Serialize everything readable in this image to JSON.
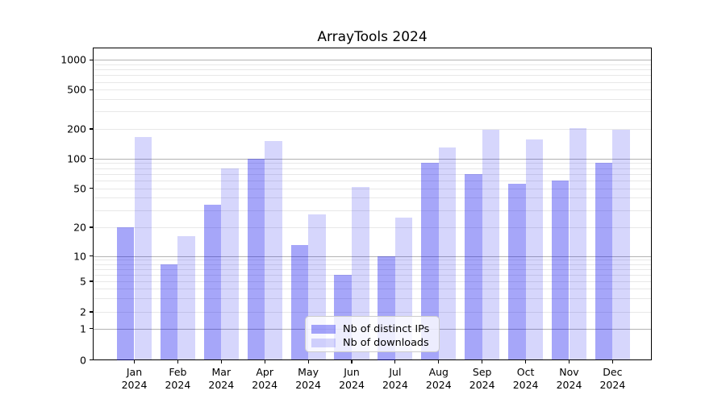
{
  "chart_data": {
    "type": "bar",
    "title": "ArrayTools 2024",
    "categories": [
      "Jan",
      "Feb",
      "Mar",
      "Apr",
      "May",
      "Jun",
      "Jul",
      "Aug",
      "Sep",
      "Oct",
      "Nov",
      "Dec"
    ],
    "category_year": "2024",
    "series": [
      {
        "name": "Nb of distinct IPs",
        "color": "rgba(0,0,238,0.35)",
        "values": [
          20,
          8,
          34,
          100,
          13,
          6,
          10,
          90,
          70,
          55,
          60,
          90
        ]
      },
      {
        "name": "Nb of downloads",
        "color": "rgba(0,0,238,0.16)",
        "values": [
          165,
          16,
          80,
          150,
          27,
          51,
          25,
          130,
          195,
          155,
          205,
          195
        ]
      }
    ],
    "yticks": [
      0,
      1,
      2,
      5,
      10,
      20,
      50,
      100,
      200,
      500,
      1000
    ],
    "ylim": [
      0,
      1200
    ],
    "yscale": "symlog",
    "grid": true,
    "legend_position": "lower center"
  },
  "colors": {
    "major_grid": "#b3b3b3",
    "minor_grid": "#e8e8e8",
    "spine": "#000000",
    "background": "#ffffff"
  }
}
